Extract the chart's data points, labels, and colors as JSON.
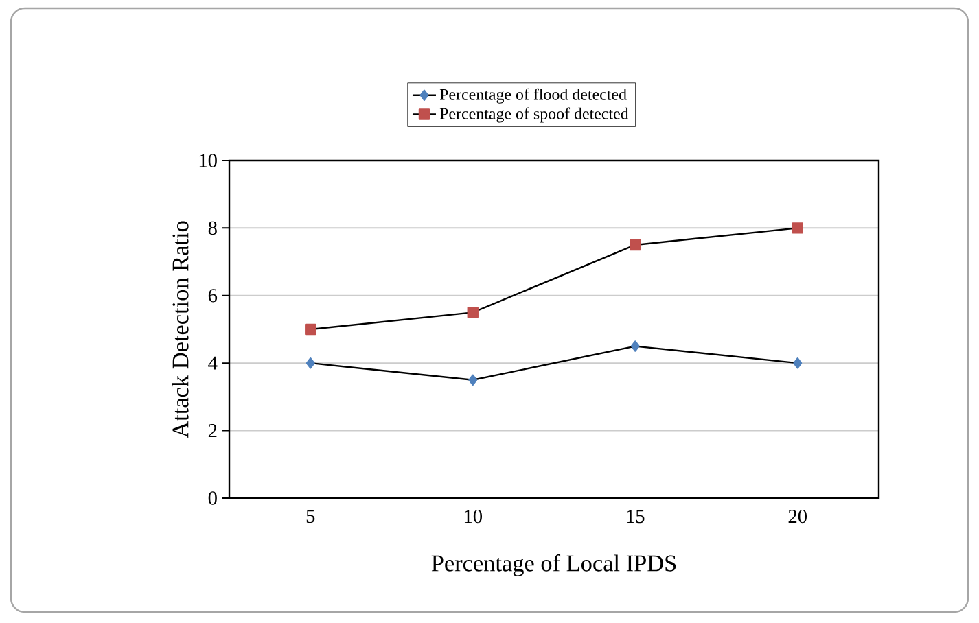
{
  "chart_data": {
    "type": "line",
    "xlabel": "Percentage of Local IPDS",
    "ylabel": "Attack Detection Ratio",
    "categories": [
      "5",
      "10",
      "15",
      "20"
    ],
    "series": [
      {
        "name": "Percentage of flood detected",
        "color": "#4f81bd",
        "marker": "diamond",
        "values": [
          4,
          3.5,
          4.5,
          4
        ]
      },
      {
        "name": "Percentage of spoof detected",
        "color": "#c0504d",
        "marker": "square",
        "values": [
          5,
          5.5,
          7.5,
          8
        ]
      }
    ],
    "ylim": [
      0,
      10
    ],
    "yticks": [
      0,
      2,
      4,
      6,
      8,
      10
    ],
    "grid": "y",
    "legend": "top",
    "line_style": "solid"
  }
}
